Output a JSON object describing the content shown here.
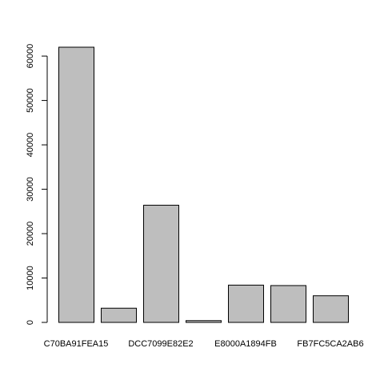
{
  "chart_data": {
    "type": "bar",
    "categories": [
      "C70BA91FEA15",
      "",
      "DCC7099E82E2",
      "",
      "E8000A1894FB",
      "",
      "FB7FC5CA2AB6"
    ],
    "values": [
      62000,
      3200,
      26400,
      400,
      8400,
      8300,
      6000
    ],
    "yticks": [
      0,
      10000,
      20000,
      30000,
      40000,
      50000,
      60000
    ],
    "ylim": [
      0,
      62000
    ],
    "bar_color": "#bebebe",
    "bar_stroke": "#000000",
    "grid": false,
    "legend": "none"
  }
}
